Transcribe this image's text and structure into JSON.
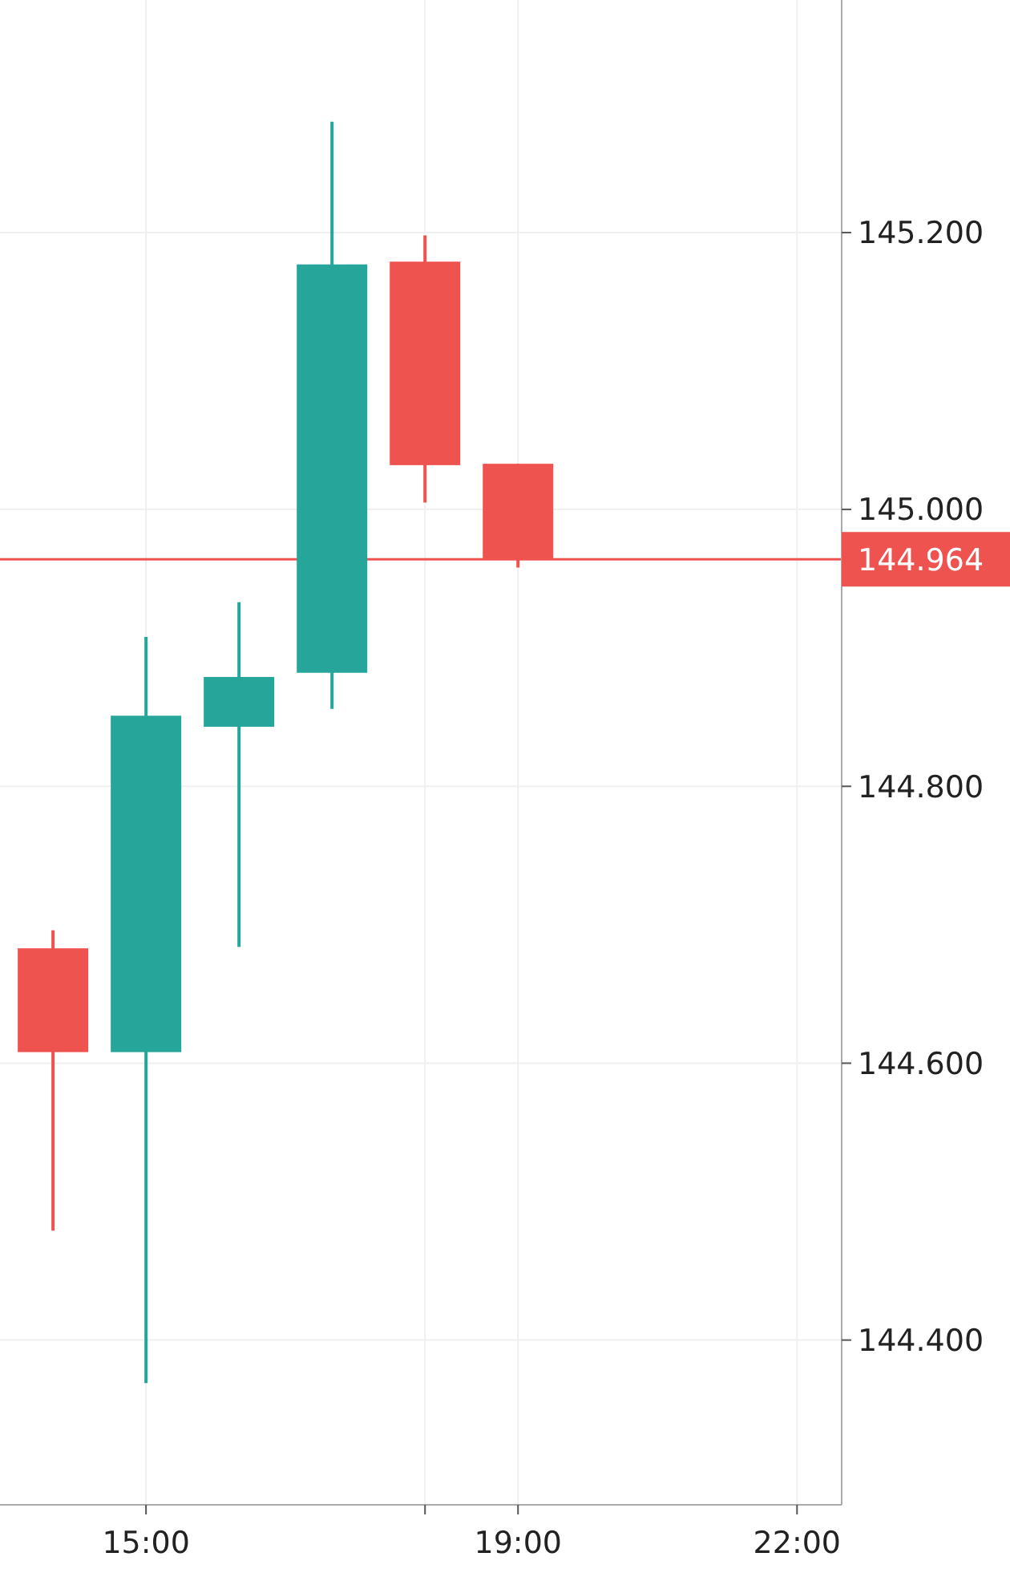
{
  "chart_data": {
    "type": "candlestick",
    "x": [
      14,
      15,
      16,
      17,
      18,
      19
    ],
    "ohlc": [
      [
        144.683,
        144.696,
        144.479,
        144.608
      ],
      [
        144.608,
        144.908,
        144.369,
        144.851
      ],
      [
        144.843,
        144.933,
        144.684,
        144.879
      ],
      [
        144.882,
        145.28,
        144.856,
        145.177
      ],
      [
        145.179,
        145.198,
        145.005,
        145.032
      ],
      [
        145.033,
        145.033,
        144.958,
        144.964
      ]
    ],
    "colors": [
      "#ef5350",
      "#26a69a",
      "#26a69a",
      "#26a69a",
      "#ef5350",
      "#ef5350"
    ],
    "xlim": [
      13.43,
      22.48
    ],
    "xticks": [
      {
        "value": 15,
        "label": "15:00"
      },
      {
        "value": 18,
        "label": null
      },
      {
        "value": 19,
        "label": "19:00"
      },
      {
        "value": 22,
        "label": "22:00"
      }
    ],
    "ylim": [
      144.281,
      145.368
    ],
    "yticks": [
      {
        "value": 144.4,
        "label": "144.400"
      },
      {
        "value": 144.6,
        "label": "144.600"
      },
      {
        "value": 144.8,
        "label": "144.800"
      },
      {
        "value": 145,
        "label": "145.000"
      },
      {
        "value": 145.2,
        "label": "145.200"
      }
    ],
    "grid": true,
    "ref_lines": [
      {
        "axis": "y",
        "value": 144.964,
        "label": "144.964",
        "color": "#ef5350"
      }
    ]
  }
}
